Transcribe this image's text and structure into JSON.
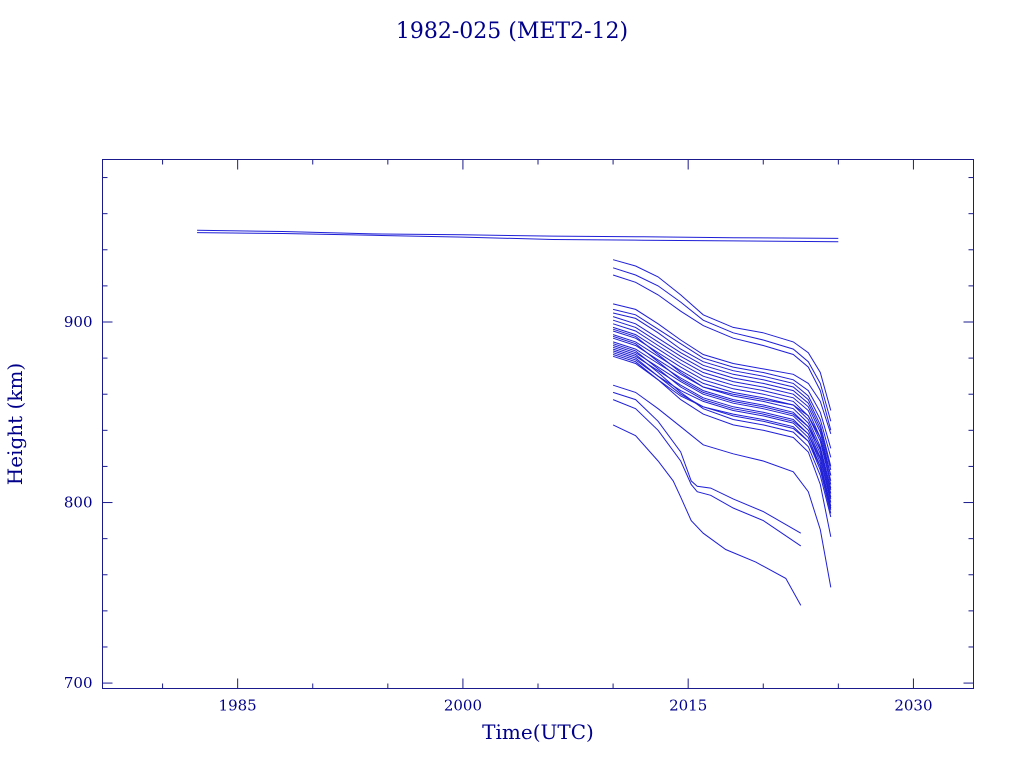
{
  "chart_data": {
    "type": "line",
    "title": "1982-025 (MET2-12)",
    "xlabel": "Time(UTC)",
    "ylabel": "Height (km)",
    "xlim": [
      1976,
      2034
    ],
    "ylim": [
      697,
      990
    ],
    "x_major_ticks": [
      1985,
      2000,
      2015,
      2030
    ],
    "x_minor_ticks": [
      1980,
      1990,
      1995,
      2005,
      2010,
      2020,
      2025
    ],
    "y_major_ticks": [
      700,
      800,
      900
    ],
    "y_minor_ticks": [
      720,
      740,
      760,
      780,
      820,
      840,
      860,
      880,
      920,
      940,
      960,
      980
    ],
    "grid": false,
    "colors": {
      "axis": "#1a1a8c",
      "text": "#00008b",
      "series": "#1f1fd6"
    },
    "series": [
      {
        "x": [
          1982.3,
          1988,
          1994,
          2000,
          2006,
          2012,
          2018,
          2025
        ],
        "y": [
          950.8,
          950.1,
          948.8,
          948.3,
          947.6,
          947.2,
          946.7,
          946.3
        ]
      },
      {
        "x": [
          1982.3,
          1988,
          1994,
          2000,
          2006,
          2012,
          2018,
          2025
        ],
        "y": [
          949.5,
          949,
          948,
          947,
          945.7,
          945.3,
          944.9,
          944.4
        ]
      },
      {
        "x": [
          2010,
          2011.5,
          2013,
          2014.5,
          2016,
          2018,
          2020,
          2022,
          2023,
          2023.8,
          2024.5
        ],
        "y": [
          934.5,
          931,
          925,
          915,
          904,
          897,
          894,
          889,
          883,
          872,
          851
        ]
      },
      {
        "x": [
          2010,
          2011.5,
          2013,
          2014.5,
          2016,
          2018,
          2020,
          2022,
          2023,
          2023.8,
          2024.5
        ],
        "y": [
          930,
          926,
          920,
          911,
          901,
          894,
          890,
          885,
          878,
          866,
          845
        ]
      },
      {
        "x": [
          2010,
          2011.5,
          2013,
          2014.5,
          2016,
          2018,
          2020,
          2022,
          2023,
          2023.8,
          2024.5
        ],
        "y": [
          926,
          922,
          915,
          906,
          898,
          891,
          887,
          882,
          875,
          862,
          840
        ]
      },
      {
        "x": [
          2010,
          2011.5,
          2013,
          2014.5,
          2016,
          2018,
          2020,
          2022,
          2023,
          2023.8,
          2024.5
        ],
        "y": [
          910,
          907,
          899,
          890,
          882,
          877,
          874,
          871,
          866,
          856,
          838
        ]
      },
      {
        "x": [
          2010,
          2011.5,
          2013,
          2014.5,
          2016,
          2018,
          2020,
          2022,
          2023,
          2023.8,
          2024.5
        ],
        "y": [
          907,
          904,
          896,
          888,
          880,
          875,
          872,
          868,
          862,
          850,
          830
        ]
      },
      {
        "x": [
          2010,
          2011.5,
          2013,
          2014.5,
          2016,
          2018,
          2020,
          2022,
          2023,
          2023.8,
          2024.5
        ],
        "y": [
          905,
          902,
          894,
          885,
          878,
          873,
          870,
          866,
          859,
          846,
          825
        ]
      },
      {
        "x": [
          2010,
          2011.5,
          2013,
          2014.5,
          2016,
          2018,
          2020,
          2022,
          2023,
          2023.8,
          2024.5
        ],
        "y": [
          903,
          899,
          891,
          883,
          876,
          871,
          868,
          864,
          857,
          843,
          820
        ]
      },
      {
        "x": [
          2010,
          2011.5,
          2013,
          2014.5,
          2016,
          2018,
          2020,
          2022,
          2023,
          2023.8,
          2024.5
        ],
        "y": [
          901,
          897,
          889,
          881,
          874,
          869,
          866,
          862,
          855,
          841,
          818
        ]
      },
      {
        "x": [
          2010,
          2011.5,
          2013,
          2014.5,
          2016,
          2018,
          2020,
          2022,
          2023,
          2023.8,
          2024.5
        ],
        "y": [
          899,
          895,
          887,
          879,
          872,
          867,
          864,
          860,
          853,
          839,
          815
        ]
      },
      {
        "x": [
          2010,
          2011.5,
          2013,
          2014.5,
          2016,
          2018,
          2020,
          2022,
          2023,
          2023.8,
          2024.5
        ],
        "y": [
          897,
          893,
          885,
          877,
          870,
          865,
          862,
          858,
          851,
          836,
          812
        ]
      },
      {
        "x": [
          2010,
          2011.5,
          2013,
          2014.5,
          2016,
          2018,
          2020,
          2022,
          2023,
          2023.8,
          2024.5
        ],
        "y": [
          895,
          891,
          883,
          875,
          868,
          863,
          860,
          856,
          848,
          834,
          810
        ]
      },
      {
        "x": [
          2010,
          2011.5,
          2013,
          2014.5,
          2016,
          2018,
          2020,
          2022,
          2023,
          2023.8,
          2024.5
        ],
        "y": [
          893,
          889,
          881,
          873,
          866,
          861,
          858,
          854,
          846,
          831,
          807
        ]
      },
      {
        "x": [
          2010,
          2011.5,
          2013,
          2014.5,
          2016,
          2018,
          2020,
          2022,
          2023,
          2023.8,
          2024.5
        ],
        "y": [
          891,
          887,
          879,
          871,
          864,
          859,
          856,
          852,
          844,
          829,
          805
        ]
      },
      {
        "x": [
          2010,
          2011.5,
          2013,
          2014.5,
          2016,
          2018,
          2020,
          2022,
          2023,
          2023.8,
          2024.5
        ],
        "y": [
          889,
          885,
          877,
          869,
          862,
          857,
          854,
          850,
          842,
          827,
          803
        ]
      },
      {
        "x": [
          2010,
          2011.5,
          2013,
          2014.5,
          2016,
          2018,
          2020,
          2022,
          2023,
          2023.8,
          2024.5
        ],
        "y": [
          887,
          883,
          875,
          867,
          860,
          855,
          852,
          848,
          840,
          825,
          800
        ]
      },
      {
        "x": [
          2010,
          2011.5,
          2013,
          2014.5,
          2016,
          2018,
          2020,
          2022,
          2023,
          2023.8,
          2024.5
        ],
        "y": [
          885,
          881,
          873,
          865,
          858,
          853,
          850,
          846,
          838,
          822,
          798
        ]
      },
      {
        "x": [
          2010,
          2011.5,
          2013,
          2014.5,
          2016,
          2018,
          2020,
          2022,
          2023,
          2023.8,
          2024.5
        ],
        "y": [
          883,
          879,
          870,
          862,
          856,
          851,
          848,
          844,
          836,
          820,
          796
        ]
      },
      {
        "x": [
          2010,
          2011.5,
          2013,
          2014.5,
          2016,
          2018,
          2020,
          2022,
          2023,
          2023.8,
          2024.5
        ],
        "y": [
          881,
          877,
          868,
          859,
          853,
          849,
          846,
          842,
          834,
          818,
          794
        ]
      },
      {
        "x": [
          2010,
          2011.5,
          2013,
          2014.5,
          2016,
          2018,
          2020,
          2022,
          2023,
          2023.8,
          2024.5
        ],
        "y": [
          896,
          892,
          882,
          872,
          864,
          860,
          857,
          854,
          848,
          836,
          815
        ]
      },
      {
        "x": [
          2010,
          2011.5,
          2013,
          2014.5,
          2016,
          2018,
          2020,
          2022,
          2023,
          2023.8,
          2024.5
        ],
        "y": [
          892,
          888,
          878,
          868,
          861,
          856,
          853,
          849,
          842,
          830,
          808
        ]
      },
      {
        "x": [
          2010,
          2011.5,
          2013,
          2014.5,
          2016,
          2018,
          2020,
          2022,
          2023,
          2023.8,
          2024.5
        ],
        "y": [
          888,
          884,
          874,
          864,
          857,
          852,
          849,
          845,
          838,
          824,
          802
        ]
      },
      {
        "x": [
          2010,
          2011.5,
          2013,
          2014.5,
          2016,
          2018,
          2020,
          2022,
          2023,
          2023.8,
          2024.5
        ],
        "y": [
          884,
          880,
          870,
          860,
          853,
          848,
          845,
          841,
          834,
          820,
          797
        ]
      },
      {
        "x": [
          2010,
          2011.5,
          2013,
          2014.5,
          2016,
          2018,
          2020,
          2022,
          2023,
          2023.8,
          2024.5
        ],
        "y": [
          886,
          882,
          872,
          861,
          852,
          846,
          843,
          839,
          831,
          815,
          792
        ]
      },
      {
        "x": [
          2010,
          2011.5,
          2013,
          2014.5,
          2016,
          2018,
          2020,
          2022,
          2023,
          2023.8,
          2024.5
        ],
        "y": [
          882,
          878,
          868,
          857,
          849,
          843,
          840,
          836,
          828,
          810,
          781
        ]
      },
      {
        "x": [
          2010,
          2011.5,
          2013,
          2014.5,
          2016,
          2018,
          2020,
          2022,
          2023,
          2023.8,
          2024.5
        ],
        "y": [
          865,
          861,
          852,
          842,
          832,
          827,
          823,
          817,
          806,
          785,
          753
        ]
      },
      {
        "x": [
          2010,
          2011.5,
          2013,
          2014.5,
          2015.2,
          2015.6,
          2016.5,
          2018,
          2020,
          2022.5
        ],
        "y": [
          861,
          857,
          845,
          828,
          812,
          809,
          808,
          802,
          795,
          783
        ]
      },
      {
        "x": [
          2010,
          2011.5,
          2013,
          2014.5,
          2015.2,
          2015.6,
          2016.5,
          2018,
          2020,
          2022.5
        ],
        "y": [
          857,
          852,
          840,
          823,
          810,
          806,
          804,
          797,
          790,
          776
        ]
      },
      {
        "x": [
          2010,
          2011.5,
          2013,
          2014,
          2014.5,
          2015.2,
          2016,
          2017.5,
          2019.5,
          2021.5,
          2022.5
        ],
        "y": [
          843,
          837,
          823,
          812,
          803,
          790,
          783,
          774,
          767,
          758,
          743
        ]
      }
    ]
  }
}
